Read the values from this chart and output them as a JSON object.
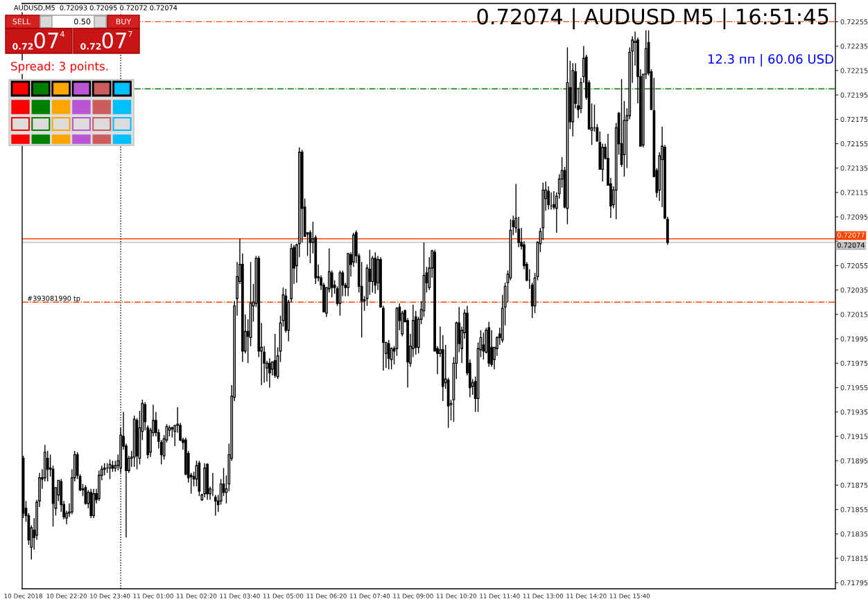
{
  "chart_data": {
    "type": "candlestick",
    "color": "#000000",
    "x": [
      "2018-12-10T21:00",
      "2018-12-10T21:05",
      "2018-12-10T21:10",
      "2018-12-10T21:15",
      "2018-12-10T21:20",
      "2018-12-10T21:25",
      "2018-12-10T21:30",
      "2018-12-10T21:35",
      "2018-12-10T21:40",
      "2018-12-10T21:45",
      "2018-12-10T21:50",
      "2018-12-10T21:55",
      "2018-12-10T22:00",
      "2018-12-10T22:05",
      "2018-12-10T22:10",
      "2018-12-10T22:15",
      "2018-12-10T22:20",
      "2018-12-10T22:25",
      "2018-12-10T22:30",
      "2018-12-10T22:35",
      "2018-12-10T22:40",
      "2018-12-10T22:45",
      "2018-12-10T22:50",
      "2018-12-10T22:55",
      "2018-12-10T23:00",
      "2018-12-10T23:05",
      "2018-12-10T23:10",
      "2018-12-10T23:15",
      "2018-12-10T23:20",
      "2018-12-10T23:25",
      "2018-12-10T23:30",
      "2018-12-10T23:35",
      "2018-12-10T23:40",
      "2018-12-10T23:45",
      "2018-12-10T23:50",
      "2018-12-10T23:55",
      "2018-12-11T00:00",
      "2018-12-11T00:05",
      "2018-12-11T00:10",
      "2018-12-11T00:15",
      "2018-12-11T00:20",
      "2018-12-11T00:25",
      "2018-12-11T00:30",
      "2018-12-11T00:35",
      "2018-12-11T00:40",
      "2018-12-11T00:45",
      "2018-12-11T00:50",
      "2018-12-11T00:55",
      "2018-12-11T01:00",
      "2018-12-11T01:05",
      "2018-12-11T01:10",
      "2018-12-11T01:15",
      "2018-12-11T01:20",
      "2018-12-11T01:25",
      "2018-12-11T01:30",
      "2018-12-11T01:35",
      "2018-12-11T01:40",
      "2018-12-11T01:45",
      "2018-12-11T01:50",
      "2018-12-11T01:55",
      "2018-12-11T02:00",
      "2018-12-11T02:05",
      "2018-12-11T02:10",
      "2018-12-11T02:15",
      "2018-12-11T02:20",
      "2018-12-11T02:25",
      "2018-12-11T02:30",
      "2018-12-11T02:35",
      "2018-12-11T02:40",
      "2018-12-11T02:45",
      "2018-12-11T02:50",
      "2018-12-11T02:55",
      "2018-12-11T03:00",
      "2018-12-11T03:05",
      "2018-12-11T03:10",
      "2018-12-11T03:15",
      "2018-12-11T03:20",
      "2018-12-11T03:25",
      "2018-12-11T03:30",
      "2018-12-11T03:35",
      "2018-12-11T03:40",
      "2018-12-11T03:45",
      "2018-12-11T03:50",
      "2018-12-11T03:55",
      "2018-12-11T04:00",
      "2018-12-11T04:05",
      "2018-12-11T04:10",
      "2018-12-11T04:15",
      "2018-12-11T04:20",
      "2018-12-11T04:25",
      "2018-12-11T04:30",
      "2018-12-11T04:35",
      "2018-12-11T04:40",
      "2018-12-11T04:45",
      "2018-12-11T04:50",
      "2018-12-11T04:55",
      "2018-12-11T05:00",
      "2018-12-11T05:05",
      "2018-12-11T05:10",
      "2018-12-11T05:15",
      "2018-12-11T05:20",
      "2018-12-11T05:25",
      "2018-12-11T05:30",
      "2018-12-11T05:35",
      "2018-12-11T05:40",
      "2018-12-11T05:45",
      "2018-12-11T05:50",
      "2018-12-11T05:55",
      "2018-12-11T06:00",
      "2018-12-11T06:05",
      "2018-12-11T06:10",
      "2018-12-11T06:15",
      "2018-12-11T06:20",
      "2018-12-11T06:25",
      "2018-12-11T06:30",
      "2018-12-11T06:35",
      "2018-12-11T06:40",
      "2018-12-11T06:45",
      "2018-12-11T06:50",
      "2018-12-11T06:55",
      "2018-12-11T07:00",
      "2018-12-11T07:05",
      "2018-12-11T07:10",
      "2018-12-11T07:15",
      "2018-12-11T07:20",
      "2018-12-11T07:25",
      "2018-12-11T07:30",
      "2018-12-11T07:35",
      "2018-12-11T07:40",
      "2018-12-11T07:45",
      "2018-12-11T07:50",
      "2018-12-11T07:55",
      "2018-12-11T08:00",
      "2018-12-11T08:05",
      "2018-12-11T08:10",
      "2018-12-11T08:15",
      "2018-12-11T08:20",
      "2018-12-11T08:25",
      "2018-12-11T08:30",
      "2018-12-11T08:35",
      "2018-12-11T08:40",
      "2018-12-11T08:45",
      "2018-12-11T08:50",
      "2018-12-11T08:55",
      "2018-12-11T09:00",
      "2018-12-11T09:05",
      "2018-12-11T09:10",
      "2018-12-11T09:15",
      "2018-12-11T09:20",
      "2018-12-11T09:25",
      "2018-12-11T09:30",
      "2018-12-11T09:35",
      "2018-12-11T09:40",
      "2018-12-11T09:45",
      "2018-12-11T09:50",
      "2018-12-11T09:55",
      "2018-12-11T10:00",
      "2018-12-11T10:05",
      "2018-12-11T10:10",
      "2018-12-11T10:15",
      "2018-12-11T10:20",
      "2018-12-11T10:25",
      "2018-12-11T10:30",
      "2018-12-11T10:35",
      "2018-12-11T10:40",
      "2018-12-11T10:45",
      "2018-12-11T10:50",
      "2018-12-11T10:55",
      "2018-12-11T11:00",
      "2018-12-11T11:05",
      "2018-12-11T11:10",
      "2018-12-11T11:15",
      "2018-12-11T11:20",
      "2018-12-11T11:25",
      "2018-12-11T11:30",
      "2018-12-11T11:35",
      "2018-12-11T11:40",
      "2018-12-11T11:45",
      "2018-12-11T11:50",
      "2018-12-11T11:55",
      "2018-12-11T12:00",
      "2018-12-11T12:05",
      "2018-12-11T12:10",
      "2018-12-11T12:15",
      "2018-12-11T12:20",
      "2018-12-11T12:25",
      "2018-12-11T12:30",
      "2018-12-11T12:35",
      "2018-12-11T12:40",
      "2018-12-11T12:45",
      "2018-12-11T12:50",
      "2018-12-11T12:55",
      "2018-12-11T13:00",
      "2018-12-11T13:05",
      "2018-12-11T13:10",
      "2018-12-11T13:15",
      "2018-12-11T13:20",
      "2018-12-11T13:25",
      "2018-12-11T13:30",
      "2018-12-11T13:35",
      "2018-12-11T13:40",
      "2018-12-11T13:45",
      "2018-12-11T13:50",
      "2018-12-11T13:55",
      "2018-12-11T14:00",
      "2018-12-11T14:05",
      "2018-12-11T14:10",
      "2018-12-11T14:15",
      "2018-12-11T14:20",
      "2018-12-11T14:25",
      "2018-12-11T14:30",
      "2018-12-11T14:35",
      "2018-12-11T14:40",
      "2018-12-11T14:45",
      "2018-12-11T14:50",
      "2018-12-11T14:55",
      "2018-12-11T15:00",
      "2018-12-11T15:05",
      "2018-12-11T15:10",
      "2018-12-11T15:15",
      "2018-12-11T15:20",
      "2018-12-11T15:25",
      "2018-12-11T15:30",
      "2018-12-11T15:35",
      "2018-12-11T15:40",
      "2018-12-11T15:45",
      "2018-12-11T15:50",
      "2018-12-11T15:55",
      "2018-12-11T16:00",
      "2018-12-11T16:05",
      "2018-12-11T16:10",
      "2018-12-11T16:15",
      "2018-12-11T16:20",
      "2018-12-11T16:25",
      "2018-12-11T16:30",
      "2018-12-11T16:35",
      "2018-12-11T16:40",
      "2018-12-11T16:45",
      "2018-12-11T16:50"
    ],
    "ohlc": [
      [
        0.71897,
        0.71899,
        0.71848,
        0.71852
      ],
      [
        0.71856,
        0.71862,
        0.71845,
        0.7185
      ],
      [
        0.7185,
        0.71852,
        0.71826,
        0.7183
      ],
      [
        0.71824,
        0.71842,
        0.71814,
        0.7184
      ],
      [
        0.71838,
        0.71848,
        0.71822,
        0.71832
      ],
      [
        0.71834,
        0.71863,
        0.7183,
        0.71861
      ],
      [
        0.71862,
        0.71885,
        0.71857,
        0.71881
      ],
      [
        0.7188,
        0.71888,
        0.71872,
        0.71881
      ],
      [
        0.71881,
        0.71908,
        0.71878,
        0.71902
      ],
      [
        0.71897,
        0.71903,
        0.71878,
        0.71888
      ],
      [
        0.71888,
        0.719,
        0.71882,
        0.71889
      ],
      [
        0.71888,
        0.71891,
        0.71841,
        0.7186
      ],
      [
        0.71856,
        0.71873,
        0.7185,
        0.71873
      ],
      [
        0.71867,
        0.71879,
        0.71862,
        0.71879
      ],
      [
        0.71878,
        0.7188,
        0.71853,
        0.71859
      ],
      [
        0.71859,
        0.71862,
        0.71847,
        0.71849
      ],
      [
        0.71848,
        0.71854,
        0.71843,
        0.71852
      ],
      [
        0.71852,
        0.7186,
        0.71849,
        0.71853
      ],
      [
        0.71853,
        0.71888,
        0.71851,
        0.71881
      ],
      [
        0.71881,
        0.71903,
        0.71878,
        0.719
      ],
      [
        0.719,
        0.71902,
        0.7188,
        0.71883
      ],
      [
        0.71882,
        0.71884,
        0.7187,
        0.71871
      ],
      [
        0.71872,
        0.71876,
        0.71866,
        0.71871
      ],
      [
        0.71873,
        0.71875,
        0.71859,
        0.7186
      ],
      [
        0.7186,
        0.71871,
        0.71856,
        0.71869
      ],
      [
        0.71869,
        0.71872,
        0.71848,
        0.7185
      ],
      [
        0.7185,
        0.71872,
        0.71848,
        0.71868
      ],
      [
        0.71868,
        0.71872,
        0.7186,
        0.71863
      ],
      [
        0.71864,
        0.71887,
        0.71862,
        0.71883
      ],
      [
        0.71883,
        0.71891,
        0.71879,
        0.71888
      ],
      [
        0.71888,
        0.71893,
        0.71883,
        0.71889
      ],
      [
        0.71889,
        0.71893,
        0.71885,
        0.71889
      ],
      [
        0.71889,
        0.71896,
        0.7188,
        0.71892
      ],
      [
        0.71891,
        0.71895,
        0.71886,
        0.71889
      ],
      [
        0.71889,
        0.71895,
        0.71886,
        0.71891
      ],
      [
        0.71891,
        0.719,
        0.71887,
        0.71895
      ],
      [
        0.71889,
        0.71922,
        0.71885,
        0.71916
      ],
      [
        0.71915,
        0.71935,
        0.71904,
        0.71907
      ],
      [
        0.71907,
        0.71909,
        0.71832,
        0.71887
      ],
      [
        0.71887,
        0.71899,
        0.71885,
        0.71897
      ],
      [
        0.71897,
        0.71903,
        0.7189,
        0.71898
      ],
      [
        0.71898,
        0.71932,
        0.7189,
        0.71929
      ],
      [
        0.71928,
        0.7193,
        0.71888,
        0.71899
      ],
      [
        0.71897,
        0.71936,
        0.71892,
        0.71922
      ],
      [
        0.71919,
        0.71945,
        0.71912,
        0.71942
      ],
      [
        0.71941,
        0.71943,
        0.7192,
        0.71927
      ],
      [
        0.71922,
        0.71924,
        0.71897,
        0.719
      ],
      [
        0.71902,
        0.71922,
        0.71898,
        0.7192
      ],
      [
        0.71918,
        0.71941,
        0.71915,
        0.71928
      ],
      [
        0.71928,
        0.71935,
        0.71915,
        0.71918
      ],
      [
        0.71918,
        0.71921,
        0.71905,
        0.71911
      ],
      [
        0.7191,
        0.71912,
        0.71892,
        0.719
      ],
      [
        0.71899,
        0.71916,
        0.71896,
        0.71913
      ],
      [
        0.71912,
        0.71925,
        0.7191,
        0.71923
      ],
      [
        0.7192,
        0.71924,
        0.71915,
        0.71922
      ],
      [
        0.71922,
        0.71923,
        0.71914,
        0.71921
      ],
      [
        0.71919,
        0.71924,
        0.71907,
        0.71924
      ],
      [
        0.71924,
        0.71939,
        0.71918,
        0.71925
      ],
      [
        0.71924,
        0.71926,
        0.71911,
        0.71912
      ],
      [
        0.71912,
        0.71914,
        0.71904,
        0.7191
      ],
      [
        0.71912,
        0.71914,
        0.71883,
        0.71884
      ],
      [
        0.71901,
        0.71903,
        0.71877,
        0.71881
      ],
      [
        0.71883,
        0.71885,
        0.71868,
        0.71882
      ],
      [
        0.71882,
        0.71886,
        0.71874,
        0.7188
      ],
      [
        0.7188,
        0.71895,
        0.71874,
        0.71891
      ],
      [
        0.71893,
        0.71895,
        0.71866,
        0.7187
      ],
      [
        0.71863,
        0.71868,
        0.71862,
        0.71867
      ],
      [
        0.71868,
        0.71893,
        0.71865,
        0.71889
      ],
      [
        0.71892,
        0.71893,
        0.71863,
        0.71868
      ],
      [
        0.71868,
        0.71874,
        0.71863,
        0.71872
      ],
      [
        0.71871,
        0.71885,
        0.71866,
        0.71871
      ],
      [
        0.71865,
        0.71867,
        0.7185,
        0.71862
      ],
      [
        0.71862,
        0.71867,
        0.71853,
        0.71859
      ],
      [
        0.71862,
        0.7188,
        0.71859,
        0.71876
      ],
      [
        0.71876,
        0.71889,
        0.71866,
        0.71869
      ],
      [
        0.71869,
        0.71883,
        0.7186,
        0.71872
      ],
      [
        0.71876,
        0.71909,
        0.7187,
        0.719
      ],
      [
        0.71897,
        0.71957,
        0.71895,
        0.71948
      ],
      [
        0.71947,
        0.72026,
        0.71944,
        0.72022
      ],
      [
        0.72028,
        0.72058,
        0.72014,
        0.72046
      ],
      [
        0.72042,
        0.72077,
        0.7204,
        0.72056
      ],
      [
        0.72056,
        0.72065,
        0.71976,
        0.71985
      ],
      [
        0.71985,
        0.72015,
        0.71983,
        0.72001
      ],
      [
        0.72001,
        0.72011,
        0.71975,
        0.71997
      ],
      [
        0.71996,
        0.72058,
        0.71989,
        0.72024
      ],
      [
        0.72022,
        0.7204,
        0.72009,
        0.72025
      ],
      [
        0.72024,
        0.72063,
        0.72021,
        0.72061
      ],
      [
        0.72061,
        0.72063,
        0.7198,
        0.71985
      ],
      [
        0.71985,
        0.72008,
        0.71957,
        0.71988
      ],
      [
        0.71984,
        0.71989,
        0.71959,
        0.71975
      ],
      [
        0.71971,
        0.71977,
        0.7196,
        0.71975
      ],
      [
        0.71975,
        0.71979,
        0.71955,
        0.71967
      ],
      [
        0.7197,
        0.71976,
        0.71965,
        0.71976
      ],
      [
        0.71977,
        0.71999,
        0.71963,
        0.71965
      ],
      [
        0.71964,
        0.71988,
        0.71962,
        0.71981
      ],
      [
        0.71985,
        0.72014,
        0.71976,
        0.72008
      ],
      [
        0.7201,
        0.72037,
        0.72005,
        0.72031
      ],
      [
        0.7203,
        0.72036,
        0.72,
        0.72002
      ],
      [
        0.72002,
        0.72027,
        0.71993,
        0.72025
      ],
      [
        0.72028,
        0.72073,
        0.72025,
        0.72069
      ],
      [
        0.7207,
        0.72072,
        0.7204,
        0.72053
      ],
      [
        0.72055,
        0.72073,
        0.72041,
        0.72072
      ],
      [
        0.72073,
        0.72152,
        0.72062,
        0.72148
      ],
      [
        0.72148,
        0.7215,
        0.72074,
        0.72102
      ],
      [
        0.72103,
        0.7211,
        0.72079,
        0.72079
      ],
      [
        0.72082,
        0.72082,
        0.72063,
        0.72081
      ],
      [
        0.72082,
        0.72084,
        0.72057,
        0.72074
      ],
      [
        0.72074,
        0.72091,
        0.72065,
        0.72077
      ],
      [
        0.72078,
        0.7208,
        0.7204,
        0.72045
      ],
      [
        0.72046,
        0.72056,
        0.72042,
        0.72045
      ],
      [
        0.72045,
        0.72047,
        0.72035,
        0.72039
      ],
      [
        0.72039,
        0.72041,
        0.72017,
        0.72017
      ],
      [
        0.72016,
        0.72037,
        0.72013,
        0.72037
      ],
      [
        0.72036,
        0.72069,
        0.72033,
        0.7205
      ],
      [
        0.72049,
        0.72051,
        0.72029,
        0.72037
      ],
      [
        0.72039,
        0.72043,
        0.72032,
        0.72037
      ],
      [
        0.72036,
        0.72038,
        0.72022,
        0.72024
      ],
      [
        0.72024,
        0.72051,
        0.72014,
        0.72049
      ],
      [
        0.72049,
        0.72051,
        0.7203,
        0.72039
      ],
      [
        0.72039,
        0.72041,
        0.7203,
        0.72037
      ],
      [
        0.72037,
        0.72065,
        0.7203,
        0.72065
      ],
      [
        0.72064,
        0.72066,
        0.72046,
        0.72056
      ],
      [
        0.72058,
        0.72082,
        0.72054,
        0.7208
      ],
      [
        0.72082,
        0.72084,
        0.72057,
        0.72063
      ],
      [
        0.72063,
        0.72065,
        0.72033,
        0.72038
      ],
      [
        0.72038,
        0.72058,
        0.71996,
        0.72026
      ],
      [
        0.72027,
        0.7203,
        0.72018,
        0.72026
      ],
      [
        0.72028,
        0.72056,
        0.72022,
        0.72053
      ],
      [
        0.72052,
        0.72068,
        0.72031,
        0.72042
      ],
      [
        0.72042,
        0.72063,
        0.72033,
        0.72061
      ],
      [
        0.72061,
        0.72066,
        0.72032,
        0.72039
      ],
      [
        0.72041,
        0.72063,
        0.72035,
        0.7206
      ],
      [
        0.7206,
        0.72062,
        0.72021,
        0.72021
      ],
      [
        0.7202,
        0.72022,
        0.71969,
        0.71992
      ],
      [
        0.71983,
        0.71992,
        0.71971,
        0.71992
      ],
      [
        0.71991,
        0.71994,
        0.7197,
        0.71979
      ],
      [
        0.71978,
        0.71988,
        0.7197,
        0.71987
      ],
      [
        0.71987,
        0.71989,
        0.71974,
        0.71985
      ],
      [
        0.71987,
        0.72021,
        0.71981,
        0.7202
      ],
      [
        0.72021,
        0.72024,
        0.72002,
        0.7201
      ],
      [
        0.71999,
        0.72018,
        0.71997,
        0.72016
      ],
      [
        0.72018,
        0.72019,
        0.72009,
        0.72009
      ],
      [
        0.7201,
        0.72012,
        0.71955,
        0.71976
      ],
      [
        0.71975,
        0.71999,
        0.71972,
        0.71989
      ],
      [
        0.71987,
        0.72023,
        0.7198,
        0.7201
      ],
      [
        0.72013,
        0.72018,
        0.71982,
        0.71988
      ],
      [
        0.71988,
        0.72013,
        0.71983,
        0.72011
      ],
      [
        0.72011,
        0.72026,
        0.72007,
        0.72019
      ],
      [
        0.72018,
        0.72074,
        0.72013,
        0.72047
      ],
      [
        0.72049,
        0.72054,
        0.72033,
        0.72041
      ],
      [
        0.72037,
        0.72062,
        0.72035,
        0.72053
      ],
      [
        0.72053,
        0.72068,
        0.72045,
        0.72067
      ],
      [
        0.72066,
        0.72068,
        0.71985,
        0.71985
      ],
      [
        0.71987,
        0.71989,
        0.71966,
        0.71983
      ],
      [
        0.71983,
        0.72005,
        0.7198,
        0.71986
      ],
      [
        0.71986,
        0.71998,
        0.71944,
        0.71956
      ],
      [
        0.71959,
        0.7199,
        0.71954,
        0.71962
      ],
      [
        0.71961,
        0.71963,
        0.71922,
        0.7194
      ],
      [
        0.71941,
        0.71945,
        0.71928,
        0.71942
      ],
      [
        0.71945,
        0.7198,
        0.71927,
        0.71975
      ],
      [
        0.71975,
        0.72009,
        0.71962,
        0.72008
      ],
      [
        0.72008,
        0.72021,
        0.71984,
        0.71991
      ],
      [
        0.71987,
        0.72005,
        0.71975,
        0.72002
      ],
      [
        0.72,
        0.72019,
        0.71995,
        0.72016
      ],
      [
        0.72016,
        0.72022,
        0.71965,
        0.71967
      ],
      [
        0.71975,
        0.71978,
        0.71947,
        0.71955
      ],
      [
        0.71956,
        0.71962,
        0.71949,
        0.71959
      ],
      [
        0.7196,
        0.71964,
        0.71935,
        0.71946
      ],
      [
        0.71946,
        0.71992,
        0.71935,
        0.71987
      ],
      [
        0.71986,
        0.72002,
        0.7198,
        0.71996
      ],
      [
        0.7199,
        0.72,
        0.71978,
        0.71985
      ],
      [
        0.71984,
        0.72004,
        0.71983,
        0.72002
      ],
      [
        0.72004,
        0.72009,
        0.71972,
        0.71975
      ],
      [
        0.71988,
        0.72002,
        0.71972,
        0.71974
      ],
      [
        0.71978,
        0.71988,
        0.7197,
        0.71988
      ],
      [
        0.71987,
        0.71997,
        0.71981,
        0.71996
      ],
      [
        0.71999,
        0.72004,
        0.7199,
        0.71996
      ],
      [
        0.71994,
        0.72031,
        0.71992,
        0.7202
      ],
      [
        0.72021,
        0.72041,
        0.72006,
        0.72038
      ],
      [
        0.72041,
        0.72051,
        0.72025,
        0.72048
      ],
      [
        0.72045,
        0.72093,
        0.72043,
        0.72084
      ],
      [
        0.72092,
        0.72096,
        0.7208,
        0.72087
      ],
      [
        0.72086,
        0.72122,
        0.72082,
        0.72094
      ],
      [
        0.72085,
        0.72095,
        0.7207,
        0.72074
      ],
      [
        0.72074,
        0.72086,
        0.72068,
        0.72071
      ],
      [
        0.72072,
        0.72075,
        0.72052,
        0.72055
      ],
      [
        0.72056,
        0.72058,
        0.72042,
        0.72043
      ],
      [
        0.72043,
        0.72052,
        0.72036,
        0.72043
      ],
      [
        0.72039,
        0.72041,
        0.72012,
        0.72022
      ],
      [
        0.72022,
        0.72049,
        0.72016,
        0.72045
      ],
      [
        0.72046,
        0.72075,
        0.72043,
        0.72074
      ],
      [
        0.72073,
        0.72086,
        0.72066,
        0.72083
      ],
      [
        0.72086,
        0.72123,
        0.72076,
        0.72117
      ],
      [
        0.7211,
        0.72124,
        0.721,
        0.72117
      ],
      [
        0.72116,
        0.7212,
        0.72101,
        0.72105
      ],
      [
        0.72104,
        0.72115,
        0.72101,
        0.72104
      ],
      [
        0.72105,
        0.72116,
        0.72101,
        0.72103
      ],
      [
        0.72102,
        0.72115,
        0.72082,
        0.72112
      ],
      [
        0.72114,
        0.7213,
        0.7211,
        0.72126
      ],
      [
        0.72126,
        0.72144,
        0.72119,
        0.72133
      ],
      [
        0.72133,
        0.72136,
        0.72102,
        0.72103
      ],
      [
        0.72102,
        0.72234,
        0.72089,
        0.72205
      ],
      [
        0.72201,
        0.72223,
        0.72167,
        0.72173
      ],
      [
        0.72173,
        0.72221,
        0.72161,
        0.72215
      ],
      [
        0.72214,
        0.72221,
        0.72184,
        0.72188
      ],
      [
        0.72186,
        0.72201,
        0.72176,
        0.72183
      ],
      [
        0.72184,
        0.72209,
        0.7218,
        0.72205
      ],
      [
        0.7221,
        0.72235,
        0.72205,
        0.72225
      ],
      [
        0.72226,
        0.72228,
        0.72191,
        0.72193
      ],
      [
        0.72205,
        0.72207,
        0.72167,
        0.72167
      ],
      [
        0.72166,
        0.72188,
        0.72154,
        0.72168
      ],
      [
        0.72168,
        0.72187,
        0.72165,
        0.72168
      ],
      [
        0.72168,
        0.72171,
        0.72157,
        0.72157
      ],
      [
        0.72156,
        0.72165,
        0.72134,
        0.72134
      ],
      [
        0.72134,
        0.72155,
        0.72124,
        0.72152
      ],
      [
        0.72152,
        0.72155,
        0.72142,
        0.72143
      ],
      [
        0.72143,
        0.72163,
        0.72121,
        0.72121
      ],
      [
        0.72122,
        0.72127,
        0.72094,
        0.72104
      ],
      [
        0.72105,
        0.7212,
        0.72102,
        0.72117
      ],
      [
        0.72117,
        0.72172,
        0.72093,
        0.72168
      ],
      [
        0.7218,
        0.72181,
        0.72146,
        0.72155
      ],
      [
        0.72155,
        0.72208,
        0.72136,
        0.72138
      ],
      [
        0.72146,
        0.7219,
        0.72128,
        0.72174
      ],
      [
        0.72174,
        0.72184,
        0.72135,
        0.72178
      ],
      [
        0.72178,
        0.72234,
        0.72175,
        0.7223
      ],
      [
        0.72231,
        0.72243,
        0.72205,
        0.7224
      ],
      [
        0.72238,
        0.72247,
        0.72219,
        0.72239
      ],
      [
        0.7224,
        0.72242,
        0.72188,
        0.7221
      ],
      [
        0.7221,
        0.72216,
        0.72153,
        0.72153
      ],
      [
        0.72154,
        0.72212,
        0.72152,
        0.72212
      ],
      [
        0.72212,
        0.72248,
        0.72208,
        0.72233
      ],
      [
        0.72238,
        0.72248,
        0.72211,
        0.72213
      ],
      [
        0.72214,
        0.72216,
        0.72183,
        0.72183
      ],
      [
        0.72182,
        0.72209,
        0.72128,
        0.72128
      ],
      [
        0.72133,
        0.72135,
        0.72111,
        0.72115
      ],
      [
        0.72117,
        0.72148,
        0.72108,
        0.72145
      ],
      [
        0.72142,
        0.72169,
        0.72103,
        0.72153
      ],
      [
        0.72152,
        0.72154,
        0.72093,
        0.72094
      ],
      [
        0.72093,
        0.72095,
        0.72072,
        0.72074
      ]
    ],
    "xlim": [
      "2018-12-10T20:58",
      "2018-12-11T22:00"
    ],
    "xticks": [
      {
        "value": "2018-12-10T21:00",
        "label": "10 Dec 2018"
      },
      {
        "value": "2018-12-10T22:20",
        "label": "10 Dec 22:20"
      },
      {
        "value": "2018-12-10T23:40",
        "label": "10 Dec 23:40"
      },
      {
        "value": "2018-12-11T01:00",
        "label": "11 Dec 01:00"
      },
      {
        "value": "2018-12-11T02:20",
        "label": "11 Dec 02:20"
      },
      {
        "value": "2018-12-11T03:40",
        "label": "11 Dec 03:40"
      },
      {
        "value": "2018-12-11T05:00",
        "label": "11 Dec 05:00"
      },
      {
        "value": "2018-12-11T06:20",
        "label": "11 Dec 06:20"
      },
      {
        "value": "2018-12-11T07:40",
        "label": "11 Dec 07:40"
      },
      {
        "value": "2018-12-11T09:00",
        "label": "11 Dec 09:00"
      },
      {
        "value": "2018-12-11T10:20",
        "label": "11 Dec 10:20"
      },
      {
        "value": "2018-12-11T11:40",
        "label": "11 Dec 11:40"
      },
      {
        "value": "2018-12-11T13:00",
        "label": "11 Dec 13:00"
      },
      {
        "value": "2018-12-11T14:20",
        "label": "11 Dec 14:20"
      },
      {
        "value": "2018-12-11T15:40",
        "label": "11 Dec 15:40"
      }
    ],
    "ylim": [
      0.7179,
      0.7227
    ],
    "yticks": [
      0.71795,
      0.71815,
      0.71835,
      0.71855,
      0.71875,
      0.71895,
      0.71915,
      0.71935,
      0.71955,
      0.71975,
      0.71995,
      0.72015,
      0.72035,
      0.72055,
      {
        "value": 0.72075,
        "label": null
      },
      0.72095,
      0.72115,
      0.72135,
      0.72155,
      0.72175,
      0.72195,
      0.72215,
      0.72235,
      0.72255
    ],
    "ref_lines": [
      {
        "axis": "y",
        "value": 0.72255,
        "color": "#ff4500",
        "line_style": "dashdot"
      },
      {
        "axis": "y",
        "value": 0.722,
        "color": "#008000",
        "line_style": "dashdot"
      },
      {
        "axis": "y",
        "value": 0.72077,
        "label": "0.72077",
        "color": "#ff4500",
        "line_style": "solid"
      },
      {
        "axis": "y",
        "value": 0.72074,
        "label": "0.72074",
        "color": "#c0c0c0",
        "line_style": "solid"
      },
      {
        "axis": "y",
        "value": 0.72025,
        "label": "#393081990 tp",
        "color": "#ff4500",
        "line_style": "dashdot"
      },
      {
        "axis": "x",
        "value": "2018-12-11T00:00",
        "color": "#000000",
        "line_style": "dotted"
      }
    ],
    "annotations": [
      "AUDUSD,M5  0.72093 0.72095 0.72072 0.72074",
      "0.72074 | AUDUSD M5 | 16:51:45",
      "12.3 пп | 60.06 USD",
      "Spread: 3 points.",
      "SELL",
      "0.50",
      "BUY",
      "0.72",
      "07",
      "4",
      "0.72",
      "07",
      "7"
    ]
  }
}
